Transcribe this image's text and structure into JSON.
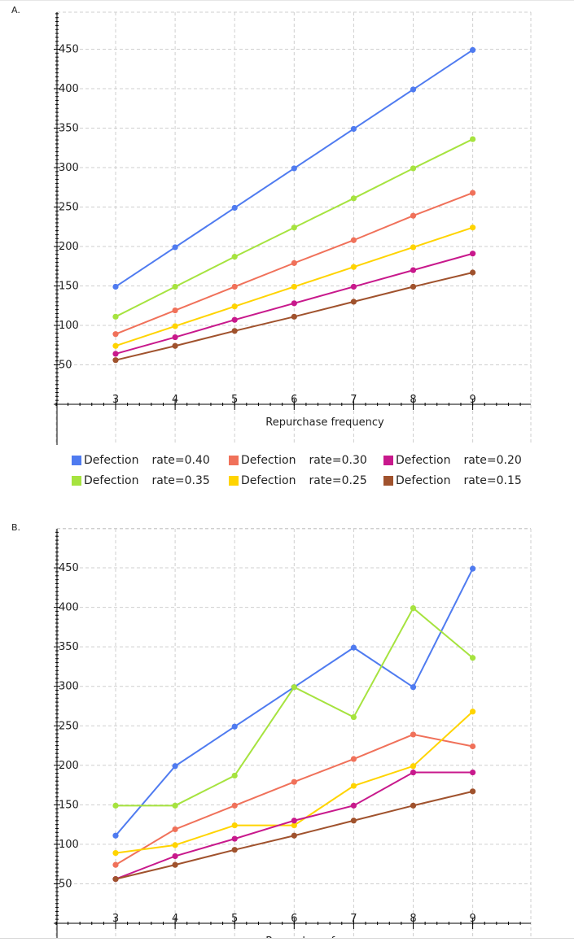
{
  "chart_data": [
    {
      "panel": "A.",
      "type": "line",
      "x": [
        3,
        4,
        5,
        6,
        7,
        8,
        9
      ],
      "xlabel": "Repurchase frequency",
      "ylabel": "",
      "yticks": [
        50,
        100,
        150,
        200,
        250,
        300,
        350,
        400,
        450
      ],
      "ylim": [
        0,
        500
      ],
      "grid": true,
      "series": [
        {
          "name": "Defection rate=0.40",
          "color": "#4F7BF0",
          "values": [
            149,
            199,
            249,
            299,
            349,
            399,
            449
          ]
        },
        {
          "name": "Defection rate=0.35",
          "color": "#A6E33F",
          "values": [
            111,
            149,
            187,
            224,
            261,
            299,
            336
          ]
        },
        {
          "name": "Defection rate=0.30",
          "color": "#F0715A",
          "values": [
            89,
            119,
            149,
            179,
            208,
            239,
            268
          ]
        },
        {
          "name": "Defection rate=0.25",
          "color": "#FFD400",
          "values": [
            74,
            99,
            124,
            149,
            174,
            199,
            224
          ]
        },
        {
          "name": "Defection rate=0.20",
          "color": "#C8198C",
          "values": [
            64,
            85,
            107,
            128,
            149,
            170,
            191
          ]
        },
        {
          "name": "Defection rate=0.15",
          "color": "#A0522D",
          "values": [
            56,
            74,
            93,
            111,
            130,
            149,
            167
          ]
        }
      ],
      "legend": [
        [
          "Defection",
          "rate=0.40"
        ],
        [
          "Defection",
          "rate=0.30"
        ],
        [
          "Defection",
          "rate=0.20"
        ],
        [
          "Defection",
          "rate=0.35"
        ],
        [
          "Defection",
          "rate=0.25"
        ],
        [
          "Defection",
          "rate=0.15"
        ]
      ]
    },
    {
      "panel": "B.",
      "type": "line",
      "x": [
        3,
        4,
        5,
        6,
        7,
        8,
        9
      ],
      "xlabel": "Repurchase frequency",
      "ylabel": "",
      "yticks": [
        50,
        100,
        150,
        200,
        250,
        300,
        350,
        400,
        450
      ],
      "ylim": [
        0,
        500
      ],
      "grid": true,
      "series": [
        {
          "name": "Defection rate=0.40",
          "color": "#4F7BF0",
          "values": [
            111,
            199,
            249,
            299,
            349,
            299,
            449
          ]
        },
        {
          "name": "Defection rate=0.35",
          "color": "#A6E33F",
          "values": [
            149,
            149,
            187,
            299,
            261,
            399,
            336
          ]
        },
        {
          "name": "Defection rate=0.30",
          "color": "#F0715A",
          "values": [
            74,
            119,
            149,
            179,
            208,
            239,
            224
          ]
        },
        {
          "name": "Defection rate=0.25",
          "color": "#FFD400",
          "values": [
            89,
            99,
            124,
            124,
            174,
            199,
            268
          ]
        },
        {
          "name": "Defection rate=0.20",
          "color": "#C8198C",
          "values": [
            56,
            85,
            107,
            130,
            149,
            191,
            191
          ]
        },
        {
          "name": "Defection rate=0.15",
          "color": "#A0522D",
          "values": [
            56,
            74,
            93,
            111,
            130,
            149,
            167
          ]
        }
      ]
    }
  ]
}
